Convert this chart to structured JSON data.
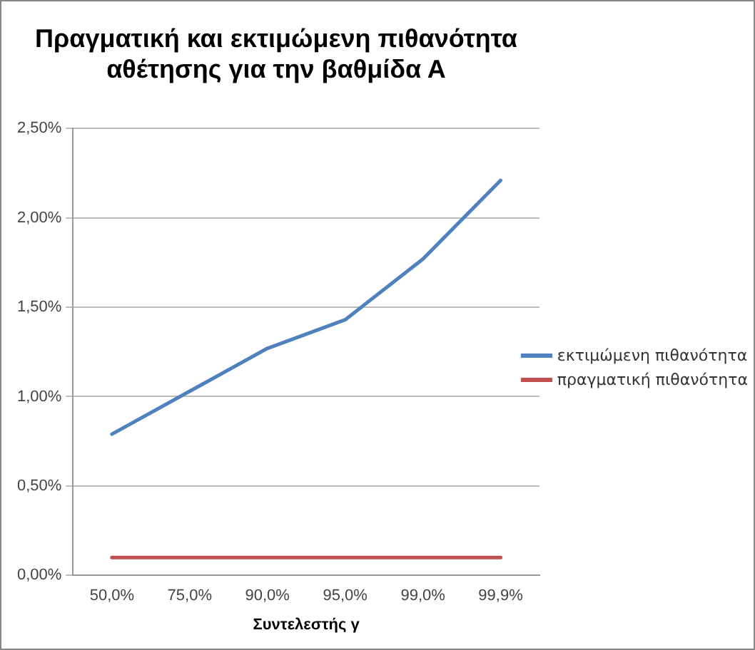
{
  "chart_data": {
    "type": "line",
    "title": "Πραγματική και εκτιμώμενη πιθανότητα αθέτησης για την βαθμίδα Α",
    "xlabel": "Συντελεστής γ",
    "categories": [
      "50,0%",
      "75,0%",
      "90,0%",
      "95,0%",
      "99,0%",
      "99,9%"
    ],
    "series": [
      {
        "name": "εκτιμώμενη πιθανότητα",
        "color": "#4f81bd",
        "values": [
          0.79,
          1.03,
          1.27,
          1.43,
          1.77,
          2.21
        ]
      },
      {
        "name": "πραγματική πιθανότητα",
        "color": "#c0504d",
        "values": [
          0.1,
          0.1,
          0.1,
          0.1,
          0.1,
          0.1
        ]
      }
    ],
    "ylim": [
      0,
      2.5
    ],
    "yticks": [
      {
        "value": 0,
        "label": "0,00%"
      },
      {
        "value": 0.5,
        "label": "0,50%"
      },
      {
        "value": 1,
        "label": "1,00%"
      },
      {
        "value": 1.5,
        "label": "1,50%"
      },
      {
        "value": 2,
        "label": "2,00%"
      },
      {
        "value": 2.5,
        "label": "2,50%"
      }
    ],
    "grid": "y",
    "legend": "right",
    "marker": "none",
    "line_style": "solid"
  }
}
